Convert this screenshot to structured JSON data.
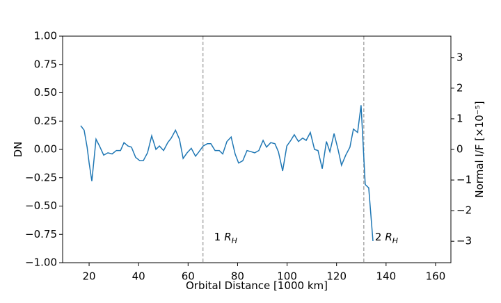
{
  "chart_data": {
    "type": "line",
    "xlabel": "Orbital Distance [1000 km]",
    "ylabel": "DN",
    "y2label": "Normal I/F [×10⁻⁵]",
    "x": [
      16.6,
      18.0,
      19.2,
      20.0,
      21.1,
      22.8,
      24.2,
      25.9,
      27.6,
      29.3,
      31.0,
      32.7,
      34.1,
      35.7,
      37.1,
      38.8,
      40.5,
      41.9,
      43.6,
      45.3,
      47.0,
      48.4,
      50.1,
      51.8,
      53.2,
      54.9,
      56.5,
      58.0,
      59.6,
      61.3,
      63.0,
      64.4,
      66.1,
      67.8,
      69.2,
      70.9,
      72.6,
      74.0,
      75.7,
      77.4,
      79.0,
      80.4,
      82.1,
      83.8,
      85.5,
      86.9,
      88.6,
      90.3,
      91.7,
      93.4,
      95.1,
      96.5,
      98.2,
      99.9,
      101.5,
      102.9,
      104.6,
      106.3,
      107.7,
      109.4,
      111.1,
      112.5,
      114.2,
      115.9,
      117.3,
      119.0,
      120.6,
      122.0,
      123.7,
      125.4,
      126.8,
      128.5,
      129.9,
      131.6,
      133.0,
      134.7
    ],
    "series": [
      {
        "name": "DN",
        "color": "#1f77b4",
        "values": [
          0.21,
          0.17,
          0.02,
          -0.12,
          -0.28,
          0.09,
          0.03,
          -0.05,
          -0.03,
          -0.04,
          -0.01,
          -0.01,
          0.06,
          0.03,
          0.02,
          -0.07,
          -0.1,
          -0.1,
          -0.03,
          0.12,
          0.0,
          0.03,
          -0.01,
          0.06,
          0.1,
          0.17,
          0.09,
          -0.08,
          -0.03,
          0.01,
          -0.06,
          -0.02,
          0.03,
          0.05,
          0.05,
          -0.01,
          -0.01,
          -0.04,
          0.07,
          0.11,
          -0.04,
          -0.12,
          -0.1,
          -0.01,
          -0.02,
          -0.03,
          -0.01,
          0.08,
          0.02,
          0.06,
          0.05,
          -0.02,
          -0.19,
          0.03,
          0.08,
          0.13,
          0.07,
          0.1,
          0.08,
          0.15,
          0.0,
          -0.01,
          -0.17,
          0.07,
          -0.02,
          0.14,
          0.0,
          -0.14,
          -0.05,
          0.02,
          0.18,
          0.15,
          0.39,
          -0.31,
          -0.34,
          -0.81
        ]
      }
    ],
    "xlim": [
      9.3,
      166.2
    ],
    "xticks": [
      20,
      40,
      60,
      80,
      100,
      120,
      140,
      160
    ],
    "ylim": [
      -1,
      1
    ],
    "yticks": [
      {
        "value": -1,
        "label": "−1.00"
      },
      {
        "value": -0.75,
        "label": "−0.75"
      },
      {
        "value": -0.5,
        "label": "−0.50"
      },
      {
        "value": -0.25,
        "label": "−0.25"
      },
      {
        "value": 0,
        "label": "0.00"
      },
      {
        "value": 0.25,
        "label": "0.25"
      },
      {
        "value": 0.5,
        "label": "0.50"
      },
      {
        "value": 0.75,
        "label": "0.75"
      },
      {
        "value": 1,
        "label": "1.00"
      }
    ],
    "y2lim": [
      -3.7,
      3.7
    ],
    "y2ticks": [
      {
        "value": -3,
        "label": "−3"
      },
      {
        "value": -2,
        "label": "−2"
      },
      {
        "value": -1,
        "label": "−1"
      },
      0,
      1,
      2,
      3
    ],
    "vlines": [
      {
        "x": 66,
        "text": "1",
        "symbol": "R",
        "subscript": "H"
      },
      {
        "x": 131,
        "text": "2",
        "symbol": "R",
        "subscript": "H"
      }
    ]
  }
}
